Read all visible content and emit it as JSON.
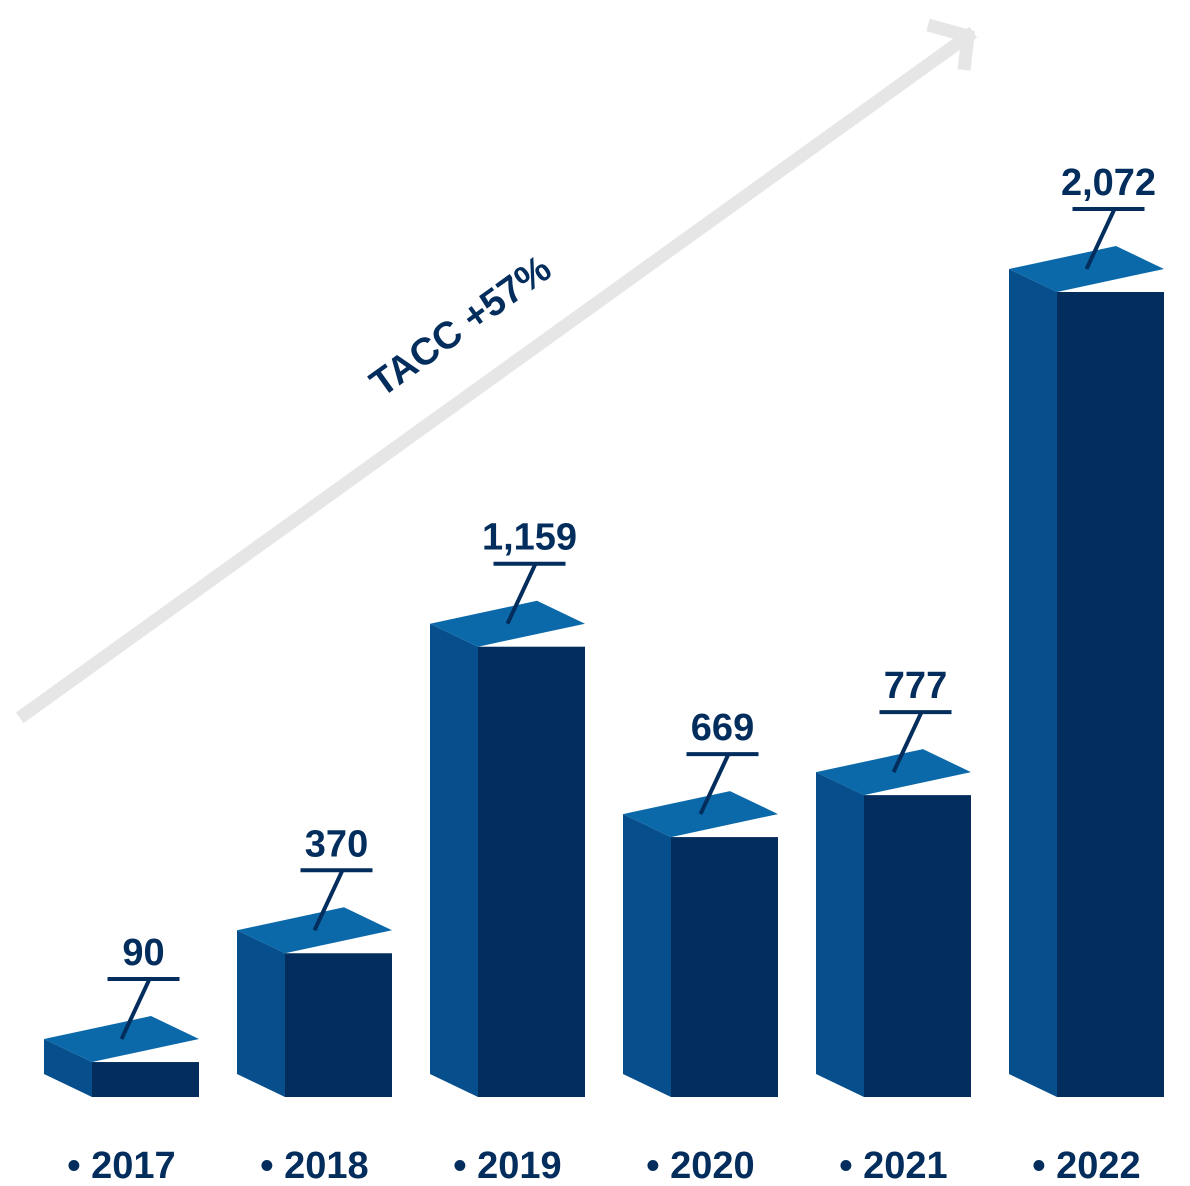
{
  "chart_data": {
    "type": "bar",
    "style": "3d",
    "categories": [
      "• 2017",
      "• 2018",
      "• 2019",
      "• 2020",
      "• 2021",
      "• 2022"
    ],
    "values": [
      90,
      370,
      1159,
      669,
      777,
      2072
    ],
    "value_labels": [
      "90",
      "370",
      "1,159",
      "669",
      "777",
      "2,072"
    ],
    "ylim": [
      0,
      2072
    ],
    "grid": false,
    "legend": "none",
    "annotation": "TACC +57%"
  },
  "colors": {
    "bar_front": "#022d5c",
    "bar_top": "#0b69aa",
    "bar_side": "#064e8c",
    "text": "#022d5c",
    "arrow": "#e6e6e6"
  }
}
